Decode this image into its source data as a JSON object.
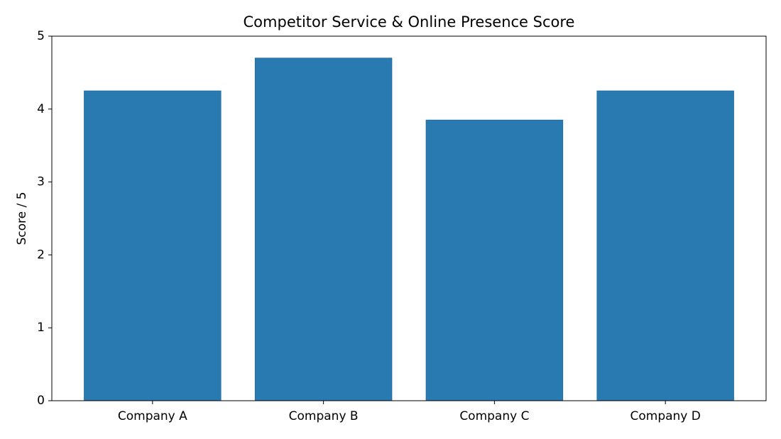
{
  "chart_data": {
    "type": "bar",
    "title": "Competitor Service & Online Presence Score",
    "y_label": "Score / 5",
    "categories": [
      "Company A",
      "Company B",
      "Company C",
      "Company D"
    ],
    "values": [
      4.25,
      4.7,
      3.85,
      4.25
    ],
    "color": "#2a7ab2",
    "ylim": [
      0,
      5
    ],
    "yticks": [
      0,
      1,
      2,
      3,
      4,
      5
    ],
    "grid": false
  }
}
